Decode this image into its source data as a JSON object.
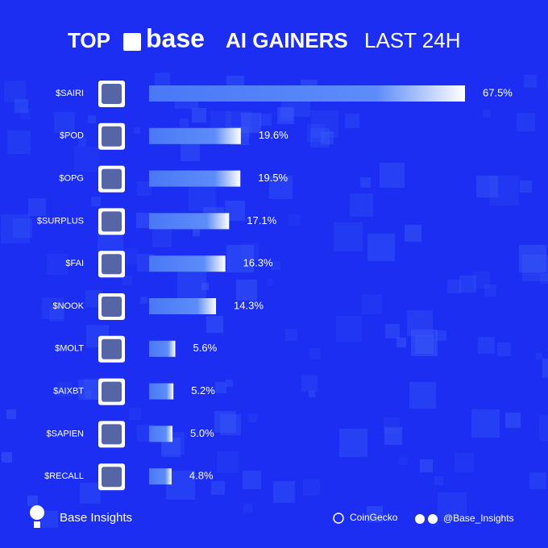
{
  "chart_data": {
    "type": "bar",
    "orientation": "horizontal",
    "title_parts": [
      "TOP",
      "base",
      "AI GAINERS",
      "LAST 24H"
    ],
    "categories": [
      "$SAIRI",
      "$POD",
      "$OPG",
      "$SURPLUS",
      "$FAI",
      "$NOOK",
      "$MOLT",
      "$AIXBT",
      "$SAPIEN",
      "$RECALL"
    ],
    "values": [
      67.5,
      19.6,
      19.5,
      17.1,
      16.3,
      14.3,
      5.6,
      5.2,
      5.0,
      4.8
    ],
    "value_labels": [
      "67.5%",
      "19.6%",
      "19.5%",
      "17.1%",
      "16.3%",
      "14.3%",
      "5.6%",
      "5.2%",
      "5.0%",
      "4.8%"
    ],
    "color": "#4a78f7",
    "footer": {
      "brand": "Base Insights",
      "source": "CoinGecko",
      "handle": "@Base_Insights"
    }
  }
}
